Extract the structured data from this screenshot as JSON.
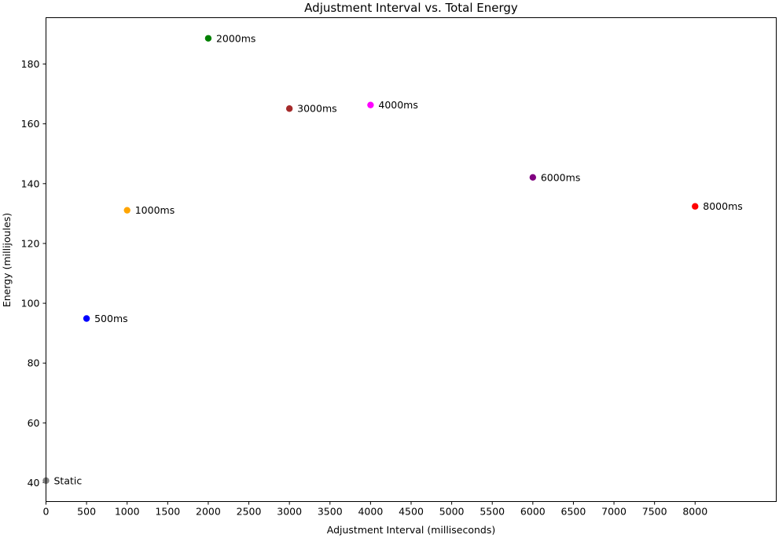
{
  "chart_data": {
    "type": "scatter",
    "title": "Adjustment Interval vs. Total Energy",
    "xlabel": "Adjustment Interval (milliseconds)",
    "ylabel": "Energy (millijoules)",
    "xlim": [
      0,
      9000
    ],
    "ylim": [
      33.7,
      195.5
    ],
    "grid": false,
    "xticks": [
      0,
      500,
      1000,
      1500,
      2000,
      2500,
      3000,
      3500,
      4000,
      4500,
      5000,
      5500,
      6000,
      6500,
      7000,
      7500,
      8000
    ],
    "yticks": [
      40,
      60,
      80,
      100,
      120,
      140,
      160,
      180
    ],
    "points": [
      {
        "label": "Static",
        "x": 0,
        "y": 40.7,
        "color": "#808080"
      },
      {
        "label": "500ms",
        "x": 500,
        "y": 94.9,
        "color": "#0000ff"
      },
      {
        "label": "1000ms",
        "x": 1000,
        "y": 131.1,
        "color": "#ffa500"
      },
      {
        "label": "2000ms",
        "x": 2000,
        "y": 188.6,
        "color": "#008000"
      },
      {
        "label": "3000ms",
        "x": 3000,
        "y": 165.1,
        "color": "#a52a2a"
      },
      {
        "label": "4000ms",
        "x": 4000,
        "y": 166.3,
        "color": "#ff00ff"
      },
      {
        "label": "6000ms",
        "x": 6000,
        "y": 142.1,
        "color": "#800080"
      },
      {
        "label": "8000ms",
        "x": 8000,
        "y": 132.4,
        "color": "#ff0000"
      }
    ]
  }
}
